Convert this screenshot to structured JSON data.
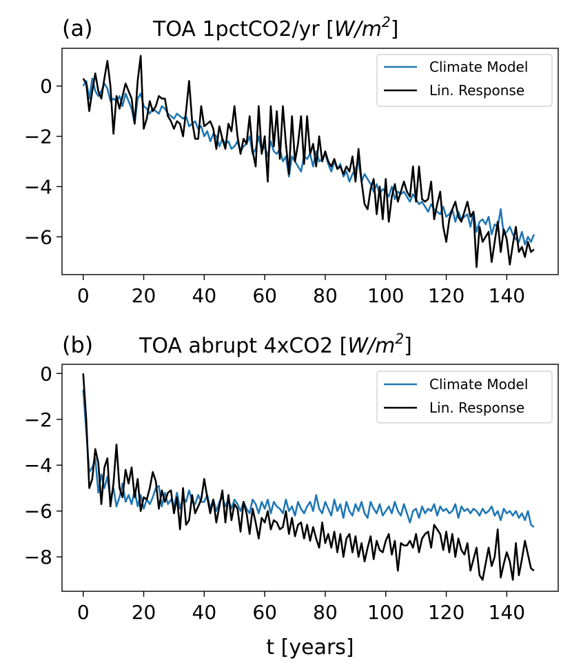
{
  "chart_data": [
    {
      "type": "line",
      "panel_label": "(a)",
      "title_main": "TOA 1pctCO2/yr [",
      "title_unit_base": "W/m",
      "title_unit_exp": "2",
      "title_end": "]",
      "xlabel": "",
      "xlim": [
        -7,
        157
      ],
      "ylim": [
        -7.5,
        1.5
      ],
      "xticks": [
        0,
        20,
        40,
        60,
        80,
        100,
        120,
        140
      ],
      "yticks": [
        0,
        -2,
        -4,
        -6
      ],
      "ytick_labels": [
        "0",
        "−2",
        "−4",
        "−6"
      ],
      "legend_position": "upper right",
      "series": [
        {
          "name": "Climate Model",
          "color": "#1f77b4",
          "values": [
            0.0,
            0.2,
            -0.5,
            0.3,
            -0.2,
            -0.4,
            -0.2,
            0.1,
            -0.1,
            -0.6,
            -0.5,
            -0.6,
            -0.4,
            -0.8,
            -0.3,
            -0.6,
            -0.9,
            -1.5,
            -0.5,
            -0.3,
            -0.8,
            -0.9,
            -1.1,
            -0.9,
            -1.0,
            -1.1,
            -0.8,
            -0.9,
            -1.1,
            -1.2,
            -1.3,
            -1.1,
            -1.2,
            -1.3,
            -1.2,
            -1.6,
            -1.5,
            -1.4,
            -1.7,
            -1.6,
            -2.0,
            -1.8,
            -2.2,
            -1.9,
            -2.0,
            -2.4,
            -2.1,
            -2.3,
            -2.2,
            -2.5,
            -2.4,
            -2.2,
            -2.6,
            -2.4,
            -2.3,
            -2.0,
            -2.7,
            -2.5,
            -2.0,
            -2.6,
            -2.4,
            -2.8,
            -2.2,
            -2.6,
            -2.7,
            -2.5,
            -3.0,
            -2.8,
            -3.6,
            -2.8,
            -3.0,
            -3.2,
            -3.4,
            -2.8,
            -2.9,
            -2.7,
            -3.2,
            -2.6,
            -3.0,
            -2.9,
            -2.7,
            -3.1,
            -3.4,
            -3.0,
            -3.3,
            -3.1,
            -3.6,
            -3.4,
            -3.8,
            -3.5,
            -3.3,
            -3.0,
            -3.8,
            -3.5,
            -3.7,
            -3.9,
            -4.2,
            -3.9,
            -4.3,
            -4.1,
            -4.2,
            -4.4,
            -4.0,
            -4.5,
            -4.2,
            -4.3,
            -4.2,
            -4.4,
            -4.6,
            -4.3,
            -4.5,
            -4.7,
            -4.6,
            -4.8,
            -5.0,
            -4.7,
            -4.9,
            -5.0,
            -5.1,
            -4.8,
            -5.2,
            -5.1,
            -4.9,
            -5.4,
            -5.0,
            -5.3,
            -5.2,
            -5.1,
            -5.6,
            -5.0,
            -5.8,
            -5.4,
            -5.3,
            -5.5,
            -5.2,
            -5.9,
            -5.5,
            -5.6,
            -4.9,
            -5.9,
            -5.8,
            -5.6,
            -5.9,
            -6.1,
            -6.2,
            -5.8,
            -6.3,
            -6.0,
            -6.2,
            -5.9
          ]
        },
        {
          "name": "Lin. Response",
          "color": "#000000",
          "values": [
            0.3,
            0.1,
            -1.0,
            -0.2,
            0.5,
            -0.2,
            -0.5,
            0.3,
            1.0,
            0.0,
            -1.9,
            -0.4,
            -0.9,
            -0.4,
            0.1,
            -0.2,
            -0.5,
            -1.5,
            0.2,
            1.2,
            -1.7,
            -1.3,
            -0.6,
            -1.0,
            -0.8,
            -0.4,
            -0.5,
            -0.5,
            -1.2,
            -1.4,
            -1.7,
            -1.4,
            -1.5,
            -2.0,
            -1.0,
            0.2,
            -1.4,
            -2.1,
            -2.1,
            -0.8,
            -1.6,
            -1.5,
            -1.4,
            -1.7,
            -2.5,
            -1.6,
            -2.1,
            -2.5,
            -1.5,
            -1.8,
            -0.8,
            -2.0,
            -2.7,
            -2.1,
            -2.3,
            -1.2,
            -2.6,
            -3.2,
            -0.8,
            -2.7,
            -2.0,
            -3.8,
            -0.8,
            -2.4,
            -1.0,
            -2.9,
            -0.8,
            -2.3,
            -3.5,
            -1.2,
            -3.0,
            -2.3,
            -1.2,
            -3.1,
            -1.2,
            -2.7,
            -2.3,
            -3.2,
            -2.0,
            -3.0,
            -2.6,
            -3.0,
            -3.2,
            -2.9,
            -3.3,
            -3.2,
            -3.5,
            -3.2,
            -3.4,
            -2.8,
            -3.8,
            -2.5,
            -3.8,
            -4.7,
            -4.9,
            -4.1,
            -3.7,
            -5.1,
            -4.0,
            -5.3,
            -3.7,
            -5.4,
            -4.4,
            -3.9,
            -4.6,
            -4.2,
            -3.8,
            -4.2,
            -4.4,
            -3.2,
            -4.6,
            -3.2,
            -4.5,
            -4.6,
            -4.5,
            -3.8,
            -5.3,
            -4.7,
            -4.2,
            -5.6,
            -6.2,
            -5.3,
            -4.9,
            -4.6,
            -5.2,
            -5.4,
            -5.0,
            -4.6,
            -5.2,
            -5.0,
            -7.2,
            -5.6,
            -6.2,
            -6.0,
            -5.8,
            -7.0,
            -6.2,
            -5.4,
            -6.6,
            -5.7,
            -6.1,
            -7.1,
            -6.3,
            -5.6,
            -6.6,
            -6.4,
            -6.8,
            -6.2,
            -6.6,
            -6.5
          ]
        }
      ]
    },
    {
      "type": "line",
      "panel_label": "(b)",
      "title_main": "TOA abrupt 4xCO2 [",
      "title_unit_base": "W/m",
      "title_unit_exp": "2",
      "title_end": "]",
      "xlabel": "t [years]",
      "xlim": [
        -7,
        157
      ],
      "ylim": [
        -9.5,
        0.4
      ],
      "xticks": [
        0,
        20,
        40,
        60,
        80,
        100,
        120,
        140
      ],
      "yticks": [
        0,
        -2,
        -4,
        -6,
        -8
      ],
      "ytick_labels": [
        "0",
        "−2",
        "−4",
        "−6",
        "−8"
      ],
      "legend_position": "upper right",
      "series": [
        {
          "name": "Climate Model",
          "color": "#1f77b4",
          "values": [
            -0.7,
            -2.5,
            -4.3,
            -4.1,
            -3.7,
            -5.2,
            -4.4,
            -5.0,
            -4.5,
            -5.5,
            -5.0,
            -5.8,
            -5.4,
            -4.8,
            -5.6,
            -5.3,
            -5.7,
            -5.1,
            -5.8,
            -5.3,
            -5.9,
            -5.5,
            -5.7,
            -5.4,
            -5.0,
            -4.9,
            -5.8,
            -5.2,
            -5.7,
            -5.5,
            -5.8,
            -5.2,
            -5.9,
            -5.4,
            -5.6,
            -5.1,
            -5.6,
            -5.7,
            -5.3,
            -5.6,
            -5.6,
            -5.3,
            -5.9,
            -5.5,
            -6.0,
            -5.6,
            -5.4,
            -5.8,
            -5.5,
            -5.9,
            -5.5,
            -5.7,
            -6.0,
            -5.6,
            -5.9,
            -6.1,
            -5.5,
            -5.7,
            -6.1,
            -5.6,
            -5.9,
            -5.5,
            -6.1,
            -5.6,
            -5.8,
            -5.9,
            -6.1,
            -5.5,
            -6.0,
            -5.8,
            -6.2,
            -5.6,
            -5.9,
            -6.1,
            -5.8,
            -5.6,
            -6.0,
            -5.3,
            -5.9,
            -6.1,
            -5.6,
            -5.9,
            -6.2,
            -5.5,
            -6.0,
            -5.7,
            -6.3,
            -5.6,
            -6.0,
            -6.2,
            -5.7,
            -6.0,
            -5.6,
            -6.1,
            -6.3,
            -5.6,
            -5.9,
            -6.1,
            -5.7,
            -6.2,
            -6.0,
            -5.8,
            -6.1,
            -5.6,
            -6.0,
            -6.2,
            -5.7,
            -6.1,
            -6.5,
            -6.0,
            -5.9,
            -6.3,
            -5.8,
            -6.1,
            -5.9,
            -6.0,
            -5.7,
            -6.2,
            -5.8,
            -6.0,
            -5.9,
            -6.1,
            -6.0,
            -5.7,
            -6.3,
            -5.8,
            -6.0,
            -5.9,
            -6.1,
            -5.9,
            -6.0,
            -6.2,
            -5.9,
            -6.1,
            -6.0,
            -5.8,
            -6.2,
            -6.0,
            -6.4,
            -5.9,
            -6.1,
            -6.0,
            -6.2,
            -6.0,
            -6.3,
            -6.1,
            -6.4,
            -6.0,
            -6.6,
            -6.7
          ]
        },
        {
          "name": "Lin. Response",
          "color": "#000000",
          "values": [
            0.0,
            -2.0,
            -5.0,
            -4.6,
            -3.3,
            -3.9,
            -5.7,
            -4.1,
            -3.7,
            -5.8,
            -4.8,
            -3.1,
            -5.0,
            -5.4,
            -4.2,
            -4.8,
            -4.1,
            -5.4,
            -4.6,
            -6.0,
            -5.4,
            -5.5,
            -5.0,
            -4.3,
            -4.7,
            -5.9,
            -5.1,
            -5.6,
            -5.2,
            -5.1,
            -6.1,
            -5.4,
            -6.8,
            -5.0,
            -6.6,
            -6.4,
            -5.3,
            -6.1,
            -5.8,
            -5.5,
            -4.6,
            -5.4,
            -6.1,
            -5.5,
            -6.5,
            -5.8,
            -5.1,
            -6.5,
            -5.3,
            -6.4,
            -5.7,
            -5.9,
            -6.9,
            -5.6,
            -6.1,
            -7.0,
            -5.9,
            -6.5,
            -7.2,
            -6.3,
            -6.5,
            -6.0,
            -6.8,
            -6.4,
            -6.5,
            -6.8,
            -6.7,
            -6.0,
            -7.0,
            -6.3,
            -7.1,
            -6.6,
            -6.5,
            -7.2,
            -6.6,
            -7.3,
            -6.7,
            -7.2,
            -7.6,
            -6.5,
            -7.4,
            -7.0,
            -7.6,
            -6.9,
            -7.8,
            -7.0,
            -8.0,
            -7.2,
            -7.0,
            -7.8,
            -7.1,
            -8.0,
            -7.4,
            -8.2,
            -7.6,
            -7.1,
            -8.1,
            -7.3,
            -7.7,
            -7.8,
            -7.3,
            -7.0,
            -7.9,
            -7.3,
            -8.6,
            -7.4,
            -7.5,
            -7.5,
            -7.3,
            -7.6,
            -7.0,
            -7.8,
            -7.2,
            -7.0,
            -6.9,
            -7.6,
            -6.6,
            -6.8,
            -7.0,
            -7.7,
            -6.9,
            -7.8,
            -7.0,
            -8.0,
            -7.2,
            -7.7,
            -7.9,
            -7.4,
            -8.6,
            -8.1,
            -7.6,
            -8.8,
            -9.0,
            -8.3,
            -7.6,
            -8.4,
            -8.0,
            -6.8,
            -8.9,
            -8.3,
            -7.8,
            -8.2,
            -9.0,
            -7.4,
            -8.8,
            -8.1,
            -7.3,
            -7.9,
            -8.5,
            -8.6
          ]
        }
      ]
    }
  ]
}
